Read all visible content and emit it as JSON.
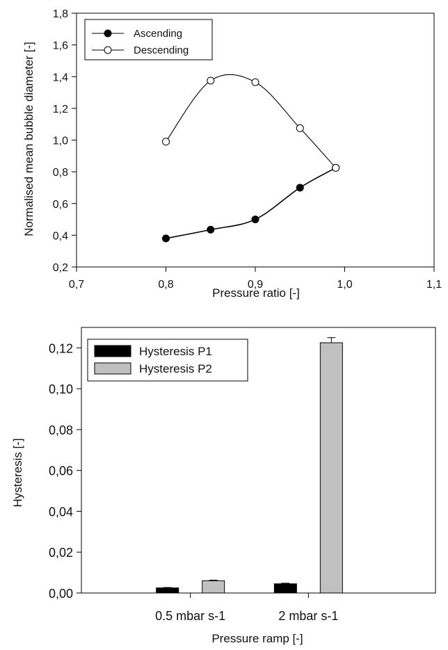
{
  "chart_data": [
    {
      "type": "line",
      "title": "",
      "xlabel": "Pressure ratio [-]",
      "ylabel": "Normalised mean bubble diameter [-]",
      "xlim": [
        0.7,
        1.1
      ],
      "ylim": [
        0.2,
        1.8
      ],
      "x_ticks": [
        0.7,
        0.8,
        0.9,
        1.0,
        1.1
      ],
      "x_tick_labels": [
        "0,7",
        "0,8",
        "0,9",
        "1,0",
        "1,1"
      ],
      "y_ticks": [
        0.2,
        0.4,
        0.6,
        0.8,
        1.0,
        1.2,
        1.4,
        1.6,
        1.8
      ],
      "y_tick_labels": [
        "0,2",
        "0,4",
        "0,6",
        "0,8",
        "1,0",
        "1,2",
        "1,4",
        "1,6",
        "1,8"
      ],
      "grid": false,
      "legend_position": "top-left",
      "series": [
        {
          "name": "Ascending",
          "marker": "filled-circle",
          "color": "#000000",
          "x": [
            0.8,
            0.85,
            0.9,
            0.95,
            0.99
          ],
          "y": [
            0.38,
            0.435,
            0.5,
            0.7,
            0.825
          ]
        },
        {
          "name": "Descending",
          "marker": "open-circle",
          "color": "#000000",
          "x": [
            0.8,
            0.85,
            0.9,
            0.95,
            0.99
          ],
          "y": [
            0.99,
            1.375,
            1.365,
            1.075,
            0.825
          ]
        }
      ]
    },
    {
      "type": "bar",
      "title": "",
      "xlabel": "Pressure ramp [-]",
      "ylabel": "Hysteresis [-]",
      "categories": [
        "0.5 mbar s-1",
        "2 mbar s-1"
      ],
      "ylim": [
        0,
        0.13
      ],
      "y_ticks": [
        0,
        0.02,
        0.04,
        0.06,
        0.08,
        0.1,
        0.12
      ],
      "y_tick_labels": [
        "0,00",
        "0,02",
        "0,04",
        "0,06",
        "0,08",
        "0,10",
        "0,12"
      ],
      "grid": false,
      "legend_position": "top-left",
      "series": [
        {
          "name": "Hysteresis P1",
          "color": "#000000",
          "values": [
            0.0025,
            0.0045
          ],
          "errors": [
            0.0002,
            0.0003
          ]
        },
        {
          "name": "Hysteresis P2",
          "color": "#c0c0c0",
          "values": [
            0.006,
            0.1225
          ],
          "errors": [
            0.0003,
            0.0025
          ]
        }
      ]
    }
  ]
}
